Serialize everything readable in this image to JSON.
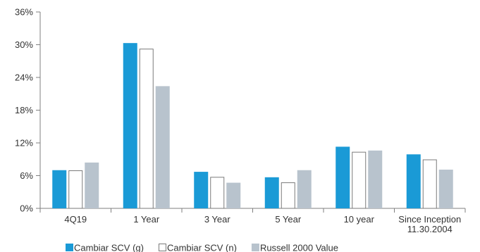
{
  "chart_data": {
    "type": "bar",
    "title": "",
    "xlabel": "",
    "ylabel": "",
    "ylim": [
      0,
      36
    ],
    "yticks": [
      "0%",
      "6%",
      "12%",
      "18%",
      "24%",
      "30%",
      "36%"
    ],
    "grid": false,
    "legend_position": "bottom-left",
    "categories": [
      [
        "4Q19"
      ],
      [
        "1 Year"
      ],
      [
        "3 Year"
      ],
      [
        "5 Year"
      ],
      [
        "10 year"
      ],
      [
        "Since Inception",
        "11.30.2004"
      ]
    ],
    "series": [
      {
        "name": "Cambiar SCV (g)",
        "color": "#1a9ad6",
        "fill": "solid",
        "values": [
          7.0,
          30.3,
          6.7,
          5.7,
          11.3,
          9.9
        ]
      },
      {
        "name": "Cambiar SCV (n)",
        "color": "#ffffff",
        "stroke": "#7a7a7a",
        "fill": "outline",
        "values": [
          6.9,
          29.2,
          5.7,
          4.7,
          10.3,
          8.9
        ]
      },
      {
        "name": "Russell 2000 Value",
        "color": "#b8c3cd",
        "fill": "solid",
        "values": [
          8.4,
          22.4,
          4.7,
          7.0,
          10.6,
          7.1
        ]
      }
    ]
  }
}
